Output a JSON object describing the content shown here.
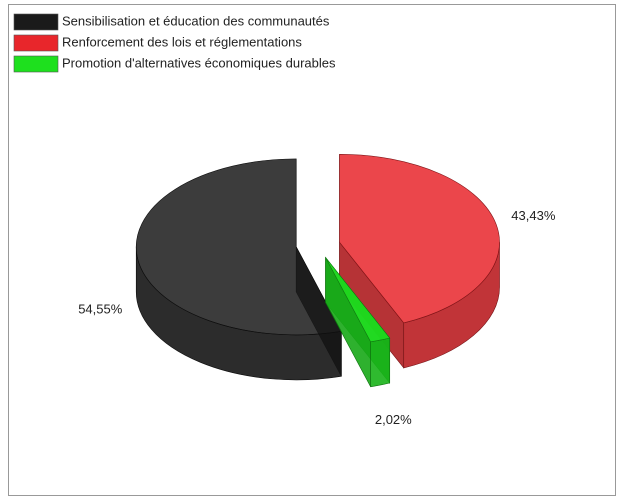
{
  "chart_data": {
    "type": "pie",
    "categories": [
      "Sensibilisation et éducation des communautés",
      "Renforcement des lois et réglementations",
      "Promotion d'alternatives économiques durables"
    ],
    "values": [
      54.55,
      43.43,
      2.02
    ],
    "value_labels": [
      "54,55%",
      "43,43%",
      "2,02%"
    ],
    "colors": [
      "#1a1a1a",
      "#e8262b",
      "#1ee01e"
    ],
    "legend": "top-left"
  }
}
